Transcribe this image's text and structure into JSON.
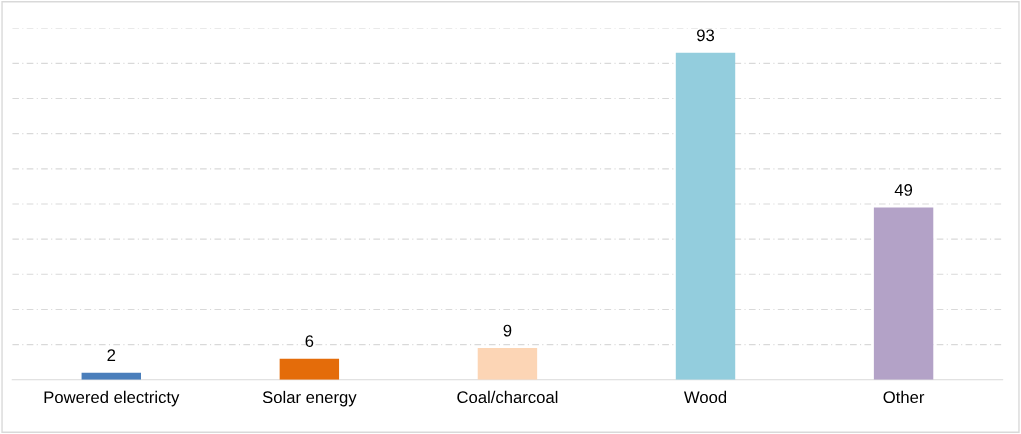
{
  "chart_data": {
    "type": "bar",
    "categories": [
      "Powered electricty",
      "Solar energy",
      "Coal/charcoal",
      "Wood",
      "Other"
    ],
    "values": [
      2,
      6,
      9,
      93,
      49
    ],
    "colors": [
      "#4a7ebb",
      "#e46c0a",
      "#fcd5b5",
      "#93cddd",
      "#b3a2c7"
    ],
    "ylim": [
      0,
      100
    ],
    "yticks": [
      {
        "value": 10,
        "label": null
      },
      {
        "value": 20,
        "label": null
      },
      {
        "value": 30,
        "label": null
      },
      {
        "value": 40,
        "label": null
      },
      {
        "value": 50,
        "label": null
      },
      {
        "value": 60,
        "label": null
      },
      {
        "value": 70,
        "label": null
      },
      {
        "value": 80,
        "label": null
      },
      {
        "value": 90,
        "label": null
      },
      {
        "value": 100,
        "label": null
      }
    ],
    "tick_labels": "x",
    "grid": "y",
    "data_labels": true
  }
}
